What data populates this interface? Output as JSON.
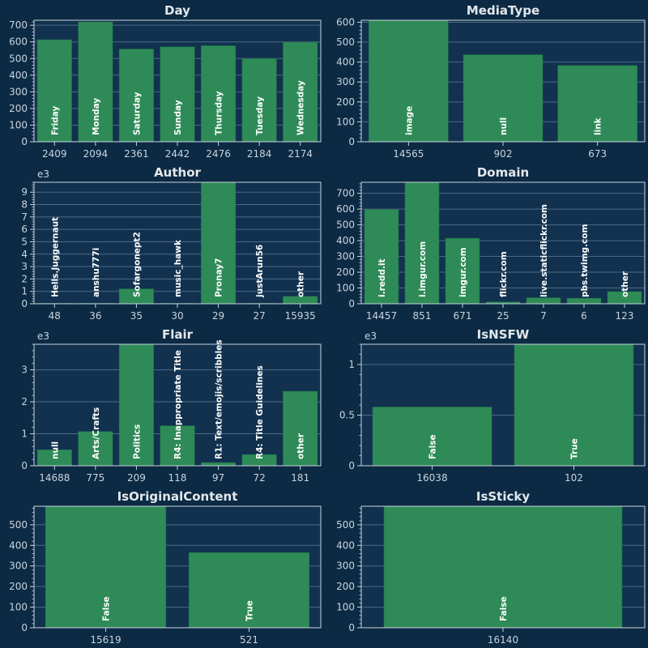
{
  "theme": {
    "background": "#0c2a44",
    "plot_bg": "#11314f",
    "bar": "#2e8b57",
    "bar_edge": "#1f6e45",
    "text": "#c9d4de",
    "title": "#e3e8ec",
    "grid": "#4d6a86",
    "label": "#ffffff"
  },
  "chart_data": [
    {
      "type": "bar",
      "title": "Day",
      "exponent": "",
      "ylim": [
        0,
        730
      ],
      "yticks": [
        0,
        100,
        200,
        300,
        400,
        500,
        600,
        700
      ],
      "ytick_labels": [
        "0",
        "100",
        "200",
        "300",
        "400",
        "500",
        "600",
        "700"
      ],
      "categories": [
        "Friday",
        "Monday",
        "Saturday",
        "Sunday",
        "Thursday",
        "Tuesday",
        "Wednesday"
      ],
      "values": [
        613,
        720,
        557,
        570,
        577,
        500,
        598
      ],
      "xtick_labels": [
        "2409",
        "2094",
        "2361",
        "2442",
        "2476",
        "2184",
        "2174"
      ]
    },
    {
      "type": "bar",
      "title": "MediaType",
      "exponent": "",
      "ylim": [
        0,
        610
      ],
      "yticks": [
        0,
        100,
        200,
        300,
        400,
        500,
        600
      ],
      "ytick_labels": [
        "0",
        "100",
        "200",
        "300",
        "400",
        "500",
        "600"
      ],
      "categories": [
        "image",
        "null",
        "link"
      ],
      "values": [
        610,
        437,
        383
      ],
      "xtick_labels": [
        "14565",
        "902",
        "673"
      ]
    },
    {
      "type": "bar",
      "title": "Author",
      "exponent": "e3",
      "ylim": [
        0,
        9.8
      ],
      "yticks": [
        0,
        1,
        2,
        3,
        4,
        5,
        6,
        7,
        8,
        9
      ],
      "ytick_labels": [
        "0",
        "1",
        "2",
        "3",
        "4",
        "5",
        "6",
        "7",
        "8",
        "9"
      ],
      "categories": [
        "Hells.Juggernaut",
        "anshu777i",
        "Sofargonept2",
        "music_hawk",
        "Pronay7",
        "justArun56",
        "other"
      ],
      "values": [
        0.01,
        0.01,
        1.2,
        0.01,
        9.8,
        0.01,
        0.6
      ],
      "xtick_labels": [
        "48",
        "36",
        "35",
        "30",
        "29",
        "27",
        "15935"
      ]
    },
    {
      "type": "bar",
      "title": "Domain",
      "exponent": "",
      "ylim": [
        0,
        770
      ],
      "yticks": [
        0,
        100,
        200,
        300,
        400,
        500,
        600,
        700
      ],
      "ytick_labels": [
        "0",
        "100",
        "200",
        "300",
        "400",
        "500",
        "600",
        "700"
      ],
      "categories": [
        "i.redd.it",
        "i.imgur.com",
        "imgur.com",
        "flickr.com",
        "live.staticflickr.com",
        "pbs.twimg.com",
        "other"
      ],
      "values": [
        597,
        770,
        415,
        12,
        38,
        35,
        77
      ],
      "xtick_labels": [
        "14457",
        "851",
        "671",
        "25",
        "7",
        "6",
        "123"
      ]
    },
    {
      "type": "bar",
      "title": "Flair",
      "exponent": "e3",
      "ylim": [
        0,
        3.8
      ],
      "yticks": [
        0,
        1,
        2,
        3
      ],
      "ytick_labels": [
        "0",
        "1",
        "2",
        "3"
      ],
      "categories": [
        "null",
        "Arts/Crafts",
        "Politics",
        "R4: Inappropriate Title",
        "R1: Text/emojis/scribbles",
        "R4: Title Guidelines",
        "other"
      ],
      "values": [
        0.5,
        1.07,
        3.8,
        1.25,
        0.1,
        0.35,
        2.33
      ],
      "xtick_labels": [
        "14688",
        "775",
        "209",
        "118",
        "97",
        "72",
        "181"
      ]
    },
    {
      "type": "bar",
      "title": "IsNSFW",
      "exponent": "e3",
      "ylim": [
        0,
        1.2
      ],
      "yticks": [
        0,
        0.5,
        1
      ],
      "ytick_labels": [
        "0",
        "0.5",
        "1"
      ],
      "categories": [
        "False",
        "True"
      ],
      "values": [
        0.58,
        1.2
      ],
      "xtick_labels": [
        "16038",
        "102"
      ]
    },
    {
      "type": "bar",
      "title": "IsOriginalContent",
      "exponent": "",
      "ylim": [
        0,
        590
      ],
      "yticks": [
        0,
        100,
        200,
        300,
        400,
        500
      ],
      "ytick_labels": [
        "0",
        "100",
        "200",
        "300",
        "400",
        "500"
      ],
      "categories": [
        "False",
        "True"
      ],
      "values": [
        590,
        365
      ],
      "xtick_labels": [
        "15619",
        "521"
      ]
    },
    {
      "type": "bar",
      "title": "IsSticky",
      "exponent": "",
      "ylim": [
        0,
        590
      ],
      "yticks": [
        0,
        100,
        200,
        300,
        400,
        500
      ],
      "ytick_labels": [
        "0",
        "100",
        "200",
        "300",
        "400",
        "500"
      ],
      "categories": [
        "False"
      ],
      "values": [
        590
      ],
      "xtick_labels": [
        "16140"
      ]
    }
  ]
}
